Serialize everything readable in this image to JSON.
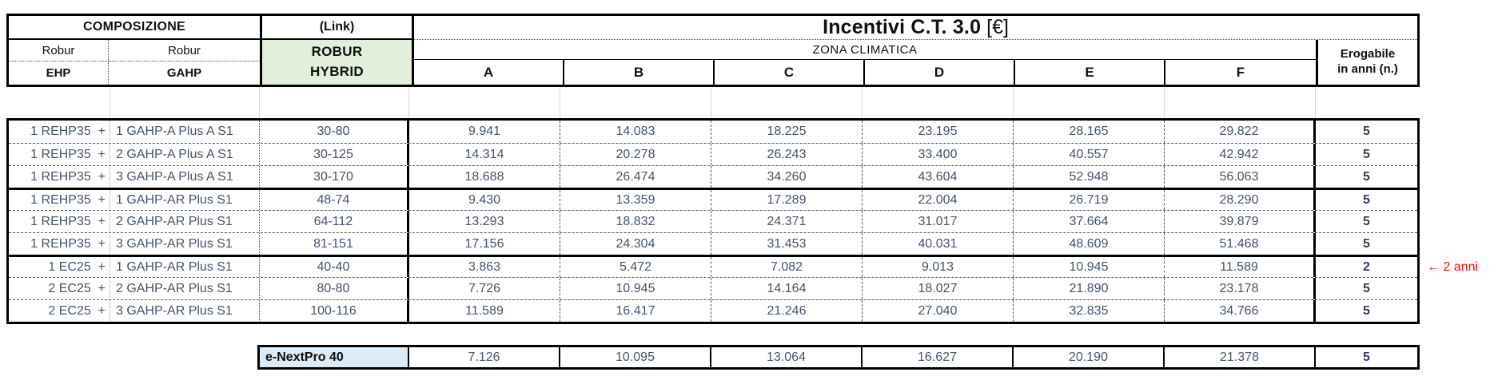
{
  "colors": {
    "hybrid_green": "#e2efda",
    "nextpro_blue": "#ddebf7",
    "data_text": "#44546a",
    "annotation_red": "#ff0000",
    "border_black": "#000000",
    "gridline_gray": "#d9d9d9"
  },
  "header": {
    "composizione": "COMPOSIZIONE",
    "robur_left": "Robur",
    "robur_right": "Robur",
    "ehp": "EHP",
    "gahp": "GAHP",
    "link": "(Link)",
    "hybrid_line1": "ROBUR",
    "hybrid_line2": "HYBRID",
    "title": "Incentivi C.T. 3.0",
    "title_unit": "[€]",
    "zona": "ZONA CLIMATICA",
    "zones": [
      "A",
      "B",
      "C",
      "D",
      "E",
      "F"
    ],
    "erogabile_line1": "Erogabile",
    "erogabile_line2": "in anni (n.)"
  },
  "rows": [
    {
      "ehp": "1 REHP35  +",
      "gahp": "1 GAHP-A Plus A S1",
      "hybrid": "30-80",
      "values": [
        "9.941",
        "14.083",
        "18.225",
        "23.195",
        "28.165",
        "29.822"
      ],
      "anni": "5"
    },
    {
      "ehp": "1 REHP35  +",
      "gahp": "2 GAHP-A Plus A S1",
      "hybrid": "30-125",
      "values": [
        "14.314",
        "20.278",
        "26.243",
        "33.400",
        "40.557",
        "42.942"
      ],
      "anni": "5"
    },
    {
      "ehp": "1 REHP35  +",
      "gahp": "3 GAHP-A Plus A S1",
      "hybrid": "30-170",
      "values": [
        "18.688",
        "26.474",
        "34.260",
        "43.604",
        "52.948",
        "56.063"
      ],
      "anni": "5"
    },
    {
      "ehp": "1 REHP35  +",
      "gahp": "1 GAHP-AR Plus S1",
      "hybrid": "48-74",
      "group_start": true,
      "values": [
        "9.430",
        "13.359",
        "17.289",
        "22.004",
        "26.719",
        "28.290"
      ],
      "anni": "5"
    },
    {
      "ehp": "1 REHP35  +",
      "gahp": "2 GAHP-AR Plus S1",
      "hybrid": "64-112",
      "values": [
        "13.293",
        "18.832",
        "24.371",
        "31.017",
        "37.664",
        "39.879"
      ],
      "anni": "5"
    },
    {
      "ehp": "1 REHP35  +",
      "gahp": "3 GAHP-AR Plus S1",
      "hybrid": "81-151",
      "values": [
        "17.156",
        "24.304",
        "31.453",
        "40.031",
        "48.609",
        "51.468"
      ],
      "anni": "5"
    },
    {
      "ehp": "1 EC25  +",
      "gahp": "1 GAHP-AR Plus S1",
      "hybrid": "40-40",
      "group_start": true,
      "values": [
        "3.863",
        "5.472",
        "7.082",
        "9.013",
        "10.945",
        "11.589"
      ],
      "anni": "2",
      "note": "← 2 anni"
    },
    {
      "ehp": "2 EC25  +",
      "gahp": "2 GAHP-AR Plus S1",
      "hybrid": "80-80",
      "values": [
        "7.726",
        "10.945",
        "14.164",
        "18.027",
        "21.890",
        "23.178"
      ],
      "anni": "5"
    },
    {
      "ehp": "2 EC25  +",
      "gahp": "3 GAHP-AR Plus S1",
      "hybrid": "100-116",
      "values": [
        "11.589",
        "16.417",
        "21.246",
        "27.040",
        "32.835",
        "34.766"
      ],
      "anni": "5"
    }
  ],
  "footer_row": {
    "label": "e-NextPro 40",
    "values": [
      "7.126",
      "10.095",
      "13.064",
      "16.627",
      "20.190",
      "21.378"
    ],
    "anni": "5"
  }
}
